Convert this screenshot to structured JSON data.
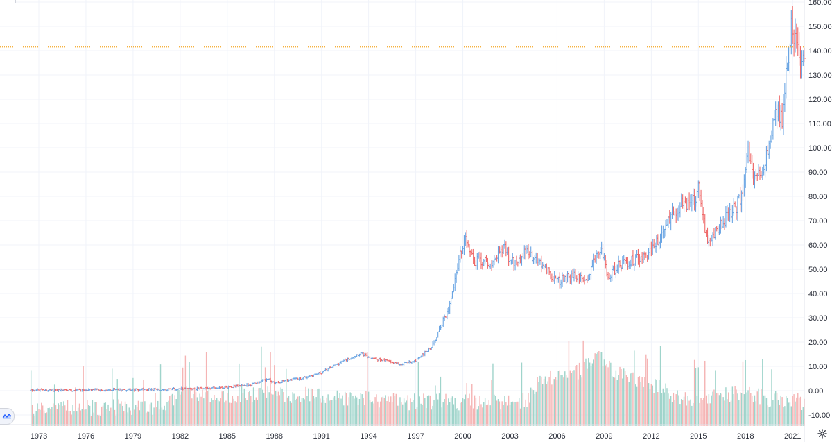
{
  "chart_data": {
    "type": "bar",
    "subtype": "ohlc-with-volume",
    "title": "",
    "xlabel": "",
    "ylabel": "",
    "x_range": [
      1972.0,
      2022.3
    ],
    "y_range": [
      -15,
      160
    ],
    "y_ticks": [
      -10,
      0,
      10,
      20,
      30,
      40,
      50,
      60,
      70,
      80,
      90,
      100,
      110,
      120,
      130,
      140,
      150,
      160
    ],
    "y_tick_labels": [
      "-10.00",
      "0.00",
      "10.00",
      "20.00",
      "30.00",
      "40.00",
      "50.00",
      "60.00",
      "70.00",
      "80.00",
      "90.00",
      "100.00",
      "110.00",
      "120.00",
      "130.00",
      "140.00",
      "150.00",
      "160.00"
    ],
    "x_tick_labels": [
      "1973",
      "1976",
      "1979",
      "1982",
      "1985",
      "1988",
      "1991",
      "1994",
      "1997",
      "2000",
      "2003",
      "2006",
      "2009",
      "2012",
      "2015",
      "2018",
      "2021"
    ],
    "x_tick_years": [
      1973,
      1976,
      1979,
      1982,
      1985,
      1988,
      1991,
      1994,
      1997,
      2000,
      2003,
      2006,
      2009,
      2012,
      2015,
      2018,
      2021
    ],
    "last_price_line": 141.5,
    "grid": true,
    "legend": "none",
    "price_anchors": [
      [
        1972.5,
        0.2
      ],
      [
        1975,
        0.25
      ],
      [
        1978,
        0.35
      ],
      [
        1981,
        0.5
      ],
      [
        1983,
        0.8
      ],
      [
        1985,
        1.5
      ],
      [
        1986.5,
        2.5
      ],
      [
        1987.6,
        4.8
      ],
      [
        1988,
        3.2
      ],
      [
        1990,
        5.5
      ],
      [
        1991,
        7.5
      ],
      [
        1992,
        11
      ],
      [
        1993.5,
        15.5
      ],
      [
        1994,
        13.5
      ],
      [
        1995,
        12.5
      ],
      [
        1996,
        11
      ],
      [
        1997,
        12.5
      ],
      [
        1998,
        18
      ],
      [
        1999,
        32
      ],
      [
        1999.8,
        55
      ],
      [
        2000.2,
        63
      ],
      [
        2000.7,
        52
      ],
      [
        2001,
        54
      ],
      [
        2002,
        52
      ],
      [
        2002.6,
        60
      ],
      [
        2003,
        52
      ],
      [
        2004,
        57
      ],
      [
        2005,
        52
      ],
      [
        2006,
        45
      ],
      [
        2007,
        47
      ],
      [
        2008,
        47
      ],
      [
        2008.8,
        60
      ],
      [
        2009.2,
        47
      ],
      [
        2010,
        52
      ],
      [
        2011,
        54
      ],
      [
        2011.8,
        56
      ],
      [
        2012.5,
        62
      ],
      [
        2013.3,
        73
      ],
      [
        2014,
        77
      ],
      [
        2014.7,
        78
      ],
      [
        2015,
        83
      ],
      [
        2015.4,
        66
      ],
      [
        2015.7,
        60
      ],
      [
        2016.5,
        70
      ],
      [
        2017,
        72
      ],
      [
        2017.8,
        80
      ],
      [
        2018.2,
        100
      ],
      [
        2018.5,
        86
      ],
      [
        2019,
        92
      ],
      [
        2019.5,
        100
      ],
      [
        2020,
        115
      ],
      [
        2020.3,
        110
      ],
      [
        2020.9,
        150
      ],
      [
        2021.2,
        146
      ],
      [
        2021.5,
        136
      ],
      [
        2021.8,
        141
      ]
    ],
    "volume_anchors": [
      [
        1972,
        -9
      ],
      [
        1981,
        -8
      ],
      [
        1982,
        -3
      ],
      [
        1990,
        -3
      ],
      [
        1996,
        -6
      ],
      [
        2004,
        -6
      ],
      [
        2005,
        4
      ],
      [
        2007,
        5
      ],
      [
        2008.7,
        12
      ],
      [
        2010,
        5
      ],
      [
        2012,
        1
      ],
      [
        2014,
        -5
      ],
      [
        2016,
        -3
      ],
      [
        2018,
        -3
      ],
      [
        2020,
        -5
      ],
      [
        2021.5,
        -6
      ]
    ],
    "colors": {
      "up": "#6aa5e3",
      "down": "#ef6a6a",
      "volume_up": "#9fd4cb",
      "volume_down": "#f5b4b4",
      "grid": "#f0f3fa",
      "price_line": "#f5a623",
      "axis_text": "#2a2e39"
    }
  }
}
